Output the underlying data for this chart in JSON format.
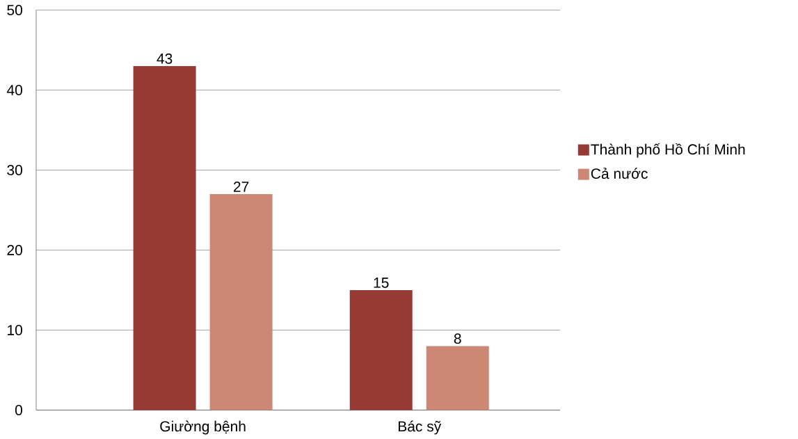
{
  "chart_data": {
    "type": "bar",
    "categories": [
      "Giường bệnh",
      "Bác sỹ"
    ],
    "series": [
      {
        "name": "Thành phố Hồ Chí Minh",
        "color": "#983a34",
        "values": [
          43,
          15
        ]
      },
      {
        "name": "Cả nước",
        "color": "#cc8875",
        "values": [
          27,
          8
        ]
      }
    ],
    "ylim": [
      0,
      50
    ],
    "yticks": [
      0,
      10,
      20,
      30,
      40,
      50
    ],
    "grid": "y",
    "legend": "right",
    "data_labels": true
  }
}
